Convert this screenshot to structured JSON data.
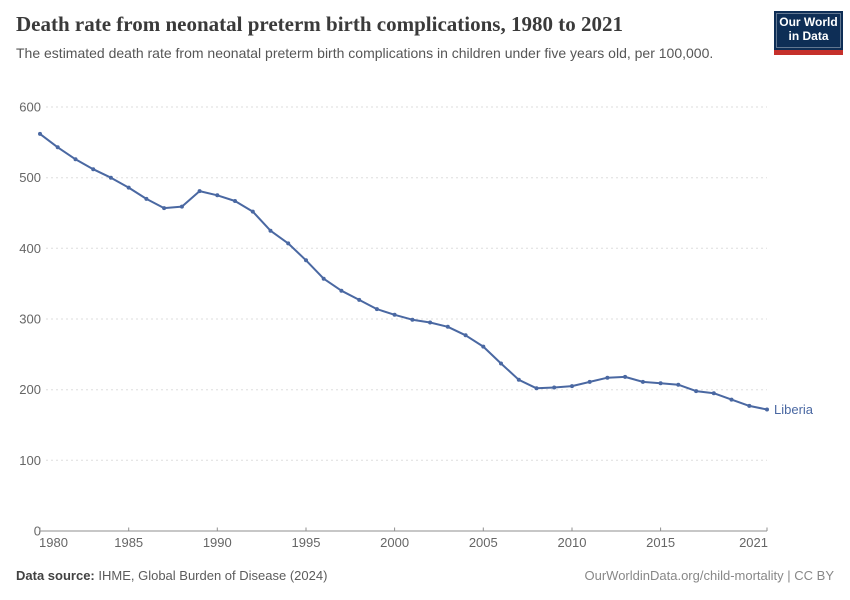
{
  "logo": {
    "line1": "Our World",
    "line2": "in Data"
  },
  "colors": {
    "line_blue": "#4A68A2",
    "logo_navy": "#0E2E56",
    "logo_red": "#C5302B"
  },
  "chart_data": {
    "type": "line",
    "title": "Death rate from neonatal preterm birth complications, 1980 to 2021",
    "subtitle": "The estimated death rate from neonatal preterm birth complications in children under five years old, per 100,000.",
    "x": [
      1980,
      1981,
      1982,
      1983,
      1984,
      1985,
      1986,
      1987,
      1988,
      1989,
      1990,
      1991,
      1992,
      1993,
      1994,
      1995,
      1996,
      1997,
      1998,
      1999,
      2000,
      2001,
      2002,
      2003,
      2004,
      2005,
      2006,
      2007,
      2008,
      2009,
      2010,
      2011,
      2012,
      2013,
      2014,
      2015,
      2016,
      2017,
      2018,
      2019,
      2020,
      2021
    ],
    "series": [
      {
        "name": "Liberia",
        "color": "#4A68A2",
        "values": [
          562,
          543,
          526,
          512,
          500,
          486,
          470,
          457,
          459,
          481,
          475,
          467,
          452,
          425,
          407,
          383,
          357,
          340,
          327,
          314,
          306,
          299,
          295,
          289,
          277,
          261,
          237,
          214,
          202,
          203,
          205,
          211,
          217,
          218,
          211,
          209,
          207,
          198,
          195,
          186,
          177,
          172
        ]
      }
    ],
    "ylim": [
      0,
      600
    ],
    "y_ticks": [
      0,
      100,
      200,
      300,
      400,
      500,
      600
    ],
    "x_ticks": [
      1980,
      1985,
      1990,
      1995,
      2000,
      2005,
      2010,
      2015,
      2021
    ],
    "grid": "horizontal-dashed",
    "legend_position": "line-end-label",
    "xlabel": "",
    "ylabel": ""
  },
  "footer": {
    "source_label": "Data source:",
    "source_text": " IHME, Global Burden of Disease (2024)",
    "link_text": "OurWorldinData.org/child-mortality | CC BY"
  }
}
